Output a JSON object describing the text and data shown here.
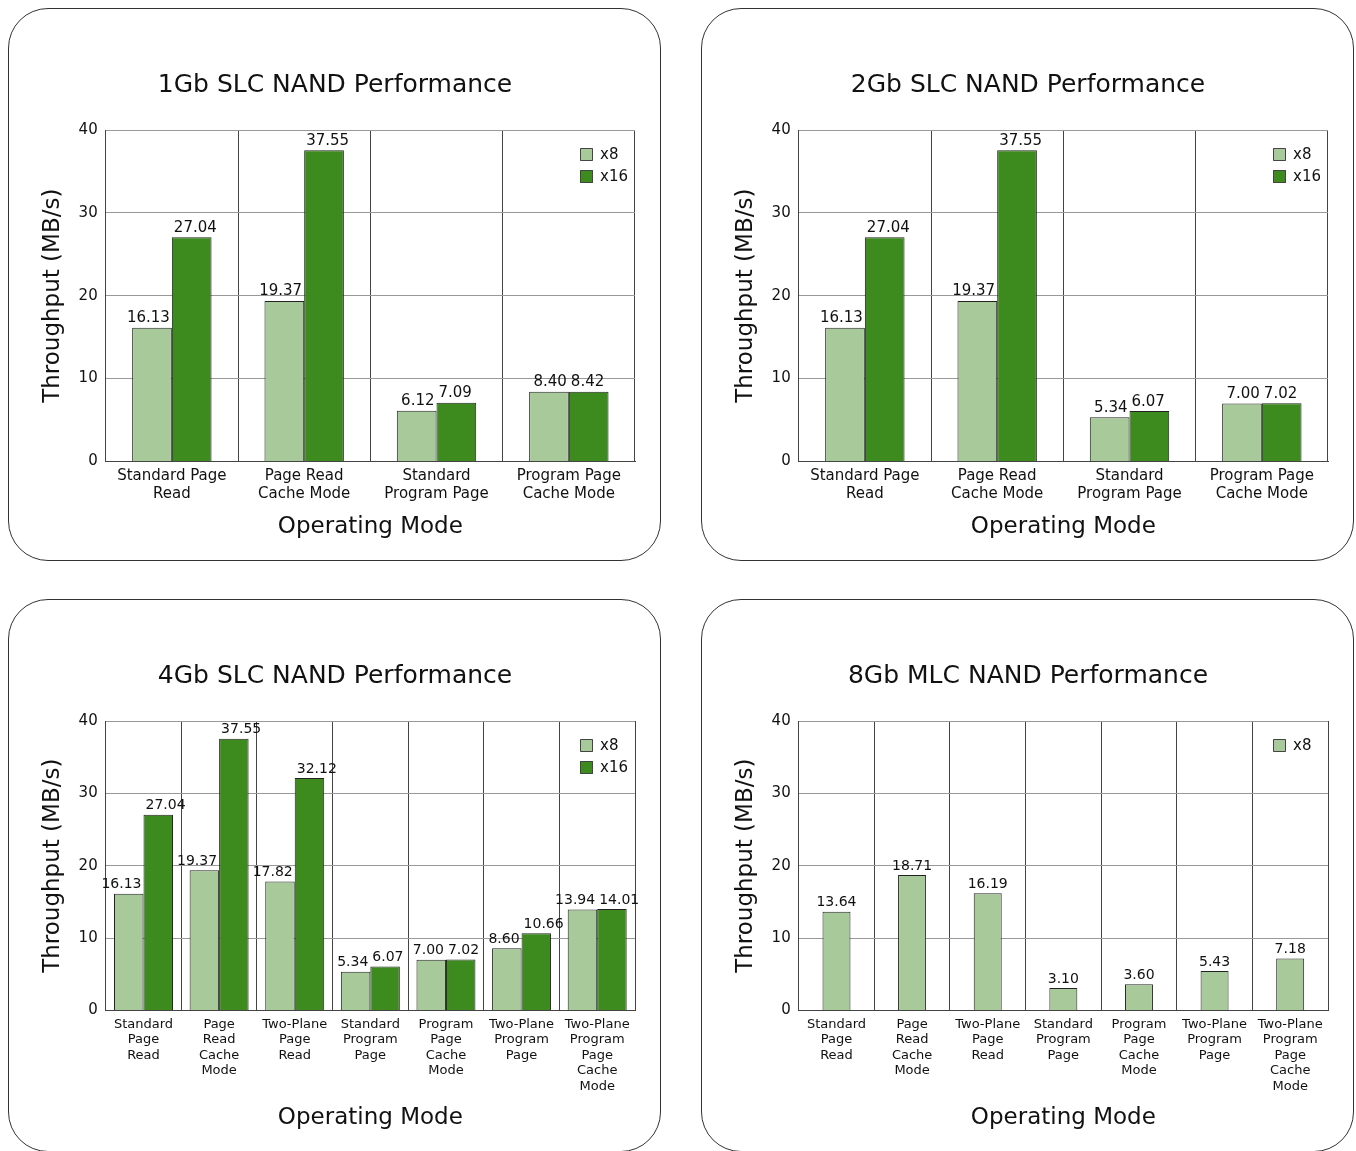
{
  "chart_data": [
    {
      "type": "bar",
      "title": "1Gb SLC NAND Performance",
      "xlabel": "Operating Mode",
      "ylabel": "Throughput (MB/s)",
      "categories": [
        "Standard Page Read",
        "Page Read Cache Mode",
        "Standard Program Page",
        "Program Page Cache Mode"
      ],
      "series": [
        {
          "name": "x8",
          "color": "#a8c99a",
          "values": [
            16.13,
            19.37,
            6.12,
            8.4
          ],
          "value_labels": [
            "16.13",
            "19.37",
            "6.12",
            "8.40"
          ]
        },
        {
          "name": "x16",
          "color": "#3d8a1e",
          "values": [
            27.04,
            37.55,
            7.09,
            8.42
          ],
          "value_labels": [
            "27.04",
            "37.55",
            "7.09",
            "8.42"
          ]
        }
      ],
      "ylim": [
        0,
        40
      ],
      "yticks": [
        0,
        10,
        20,
        30,
        40
      ],
      "grid": true,
      "legend": "top right"
    },
    {
      "type": "bar",
      "title": "2Gb SLC NAND Performance",
      "xlabel": "Operating Mode",
      "ylabel": "Throughput (MB/s)",
      "categories": [
        "Standard Page Read",
        "Page Read Cache Mode",
        "Standard Program Page",
        "Program Page Cache Mode"
      ],
      "series": [
        {
          "name": "x8",
          "color": "#a8c99a",
          "values": [
            16.13,
            19.37,
            5.34,
            7.0
          ],
          "value_labels": [
            "16.13",
            "19.37",
            "5.34",
            "7.00"
          ]
        },
        {
          "name": "x16",
          "color": "#3d8a1e",
          "values": [
            27.04,
            37.55,
            6.07,
            7.02
          ],
          "value_labels": [
            "27.04",
            "37.55",
            "6.07",
            "7.02"
          ]
        }
      ],
      "ylim": [
        0,
        40
      ],
      "yticks": [
        0,
        10,
        20,
        30,
        40
      ],
      "grid": true,
      "legend": "top right"
    },
    {
      "type": "bar",
      "title": "4Gb SLC NAND Performance",
      "xlabel": "Operating Mode",
      "ylabel": "Throughput (MB/s)",
      "categories": [
        "Standard Page Read",
        "Page Read Cache Mode",
        "Two-Plane Page Read",
        "Standard Program Page",
        "Program Page Cache Mode",
        "Two-Plane Program Page",
        "Two-Plane Program Page Cache Mode"
      ],
      "series": [
        {
          "name": "x8",
          "color": "#a8c99a",
          "values": [
            16.13,
            19.37,
            17.82,
            5.34,
            7.0,
            8.6,
            13.94
          ],
          "value_labels": [
            "16.13",
            "19.37",
            "17.82",
            "5.34",
            "7.00",
            "8.60",
            "13.94"
          ]
        },
        {
          "name": "x16",
          "color": "#3d8a1e",
          "values": [
            27.04,
            37.55,
            32.12,
            6.07,
            7.02,
            10.66,
            14.01
          ],
          "value_labels": [
            "27.04",
            "37.55",
            "32.12",
            "6.07",
            "7.02",
            "10.66",
            "14.01"
          ]
        }
      ],
      "ylim": [
        0,
        40
      ],
      "yticks": [
        0,
        10,
        20,
        30,
        40
      ],
      "grid": true,
      "legend": "top right"
    },
    {
      "type": "bar",
      "title": "8Gb MLC NAND Performance",
      "xlabel": "Operating Mode",
      "ylabel": "Throughput (MB/s)",
      "categories": [
        "Standard Page Read",
        "Page Read Cache Mode",
        "Two-Plane Page Read",
        "Standard Program Page",
        "Program Page Cache Mode",
        "Two-Plane Program Page",
        "Two-Plane Program Page Cache Mode"
      ],
      "series": [
        {
          "name": "x8",
          "color": "#a8c99a",
          "values": [
            13.64,
            18.71,
            16.19,
            3.1,
            3.6,
            5.43,
            7.18
          ],
          "value_labels": [
            "13.64",
            "18.71",
            "16.19",
            "3.10",
            "3.60",
            "5.43",
            "7.18"
          ]
        }
      ],
      "ylim": [
        0,
        40
      ],
      "yticks": [
        0,
        10,
        20,
        30,
        40
      ],
      "grid": true,
      "legend": "top right"
    }
  ]
}
